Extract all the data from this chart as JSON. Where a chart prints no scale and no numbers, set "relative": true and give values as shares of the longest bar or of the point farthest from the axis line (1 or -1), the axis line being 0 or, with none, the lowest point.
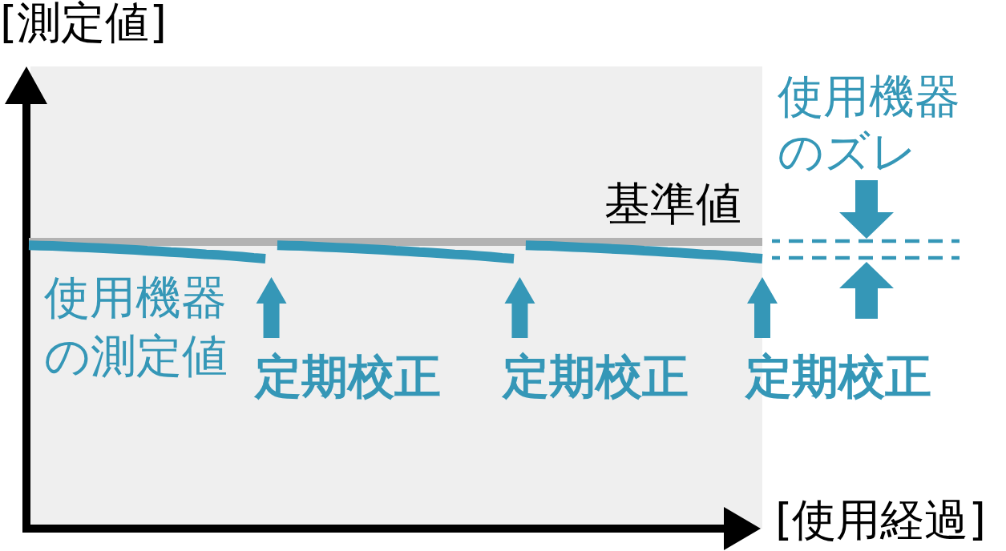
{
  "chart_data": {
    "type": "line",
    "relative": true,
    "xlabel": "[使用経過]",
    "ylabel": "[測定値]",
    "categories": [
      null,
      null,
      null,
      null,
      null,
      null,
      null,
      null,
      null,
      null,
      null,
      null,
      null,
      null,
      null,
      null,
      null,
      null,
      null,
      null,
      null,
      null,
      null,
      null,
      null,
      null,
      null,
      null,
      null,
      null,
      null,
      null,
      null,
      null,
      null,
      null,
      null,
      null,
      null,
      null,
      null,
      null,
      null,
      null,
      null,
      null,
      null,
      null,
      null,
      null,
      null,
      null,
      null,
      null,
      null,
      null,
      null,
      null,
      null,
      null,
      null,
      null,
      null
    ],
    "series": [
      {
        "name": "使用機器の測定値",
        "color": "#3597b7",
        "values": [
          1.0,
          0.999,
          0.998,
          0.996,
          0.994,
          0.992,
          0.99,
          0.988,
          0.986,
          0.984,
          0.981,
          0.979,
          0.976,
          0.974,
          0.971,
          0.968,
          0.966,
          0.963,
          0.96,
          0.956,
          0.953,
          null,
          null,
          null,
          null,
          null,
          null,
          null,
          null,
          null,
          null,
          null,
          null,
          null,
          null,
          null,
          null,
          null,
          null,
          null,
          null,
          null,
          null,
          null,
          null,
          null,
          null,
          null,
          null,
          null,
          null,
          null,
          null,
          null,
          null,
          null,
          null,
          null,
          null,
          null,
          null,
          null,
          null
        ]
      },
      {
        "color": "#3597b7",
        "values": [
          null,
          null,
          null,
          null,
          null,
          null,
          null,
          null,
          null,
          null,
          null,
          null,
          null,
          null,
          null,
          null,
          null,
          null,
          null,
          null,
          null,
          1.0,
          0.999,
          0.998,
          0.996,
          0.994,
          0.992,
          0.99,
          0.988,
          0.986,
          0.984,
          0.981,
          0.979,
          0.976,
          0.974,
          0.971,
          0.968,
          0.966,
          0.963,
          0.96,
          0.956,
          0.953,
          null,
          null,
          null,
          null,
          null,
          null,
          null,
          null,
          null,
          null,
          null,
          null,
          null,
          null,
          null,
          null,
          null,
          null,
          null,
          null,
          null
        ]
      },
      {
        "color": "#3597b7",
        "values": [
          null,
          null,
          null,
          null,
          null,
          null,
          null,
          null,
          null,
          null,
          null,
          null,
          null,
          null,
          null,
          null,
          null,
          null,
          null,
          null,
          null,
          null,
          null,
          null,
          null,
          null,
          null,
          null,
          null,
          null,
          null,
          null,
          null,
          null,
          null,
          null,
          null,
          null,
          null,
          null,
          null,
          null,
          1.0,
          0.999,
          0.998,
          0.996,
          0.994,
          0.992,
          0.99,
          0.988,
          0.986,
          0.984,
          0.981,
          0.979,
          0.976,
          0.974,
          0.971,
          0.968,
          0.966,
          0.963,
          0.96,
          0.956,
          0.953
        ]
      }
    ],
    "ref_lines": [
      {
        "axis": "y",
        "value": 1.012,
        "label": "基準値",
        "color": "#b2b2b2"
      }
    ],
    "annotations": [
      "定期校正",
      "定期校正",
      "定期校正",
      "使用機器のズレ"
    ]
  }
}
